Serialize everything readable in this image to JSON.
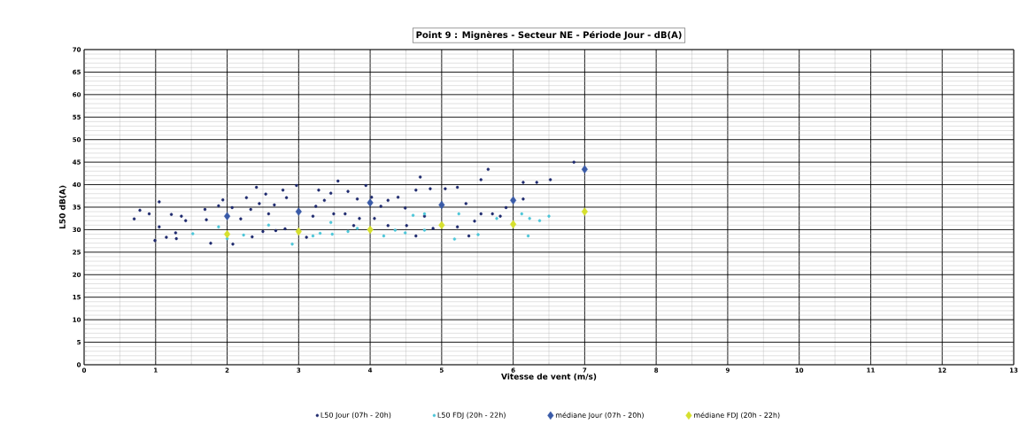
{
  "chart_data": {
    "type": "scatter",
    "title": "Point 9  : Mignères - Secteur NE - Période Jour - dB(A)",
    "xlabel": "Vitesse de vent (m/s)",
    "ylabel": "L50 dB(A)",
    "xlim": [
      0,
      13
    ],
    "ylim": [
      0,
      70
    ],
    "xticks": [
      0,
      1,
      2,
      3,
      4,
      5,
      6,
      7,
      8,
      9,
      10,
      11,
      12,
      13
    ],
    "yticks": [
      0,
      5,
      10,
      15,
      20,
      25,
      30,
      35,
      40,
      45,
      50,
      55,
      60,
      65,
      70
    ],
    "grid": true,
    "legend": "bottom",
    "series": [
      {
        "name": "L50 Jour (07h - 20h)",
        "color": "#1f2a6e",
        "marker": "circle",
        "x": [
          0.7,
          0.78,
          0.91,
          1.05,
          0.99,
          1.05,
          1.15,
          1.22,
          1.28,
          1.36,
          1.42,
          1.29,
          1.69,
          1.71,
          1.77,
          1.88,
          1.94,
          2.07,
          2.19,
          2.08,
          2.27,
          2.33,
          2.41,
          2.45,
          2.54,
          2.35,
          2.5,
          2.58,
          2.68,
          2.66,
          2.78,
          2.83,
          2.97,
          2.81,
          3.11,
          3.2,
          3.28,
          3.36,
          3.49,
          3.55,
          3.24,
          3.45,
          3.69,
          3.82,
          3.94,
          4.02,
          4.15,
          4.25,
          4.39,
          3.65,
          3.85,
          3.77,
          4.06,
          4.25,
          4.49,
          4.51,
          4.64,
          4.7,
          4.76,
          4.84,
          5.05,
          5.22,
          5.34,
          5.22,
          5.38,
          5.46,
          5.55,
          5.55,
          5.65,
          5.71,
          5.82,
          5.9,
          6.14,
          6.33,
          6.52,
          6.14,
          6.85,
          4.64,
          4.88
        ],
        "values": [
          32.4,
          34.3,
          33.5,
          36.2,
          27.6,
          30.6,
          28.3,
          33.4,
          29.3,
          33.0,
          32.0,
          28.0,
          34.5,
          32.2,
          27.0,
          35.3,
          36.6,
          34.9,
          32.4,
          26.8,
          37.1,
          34.5,
          39.4,
          35.8,
          37.9,
          28.4,
          29.6,
          33.5,
          29.8,
          35.5,
          38.8,
          37.1,
          39.8,
          30.2,
          28.3,
          33.0,
          38.8,
          36.5,
          33.5,
          40.8,
          35.2,
          38.1,
          38.5,
          36.8,
          39.8,
          37.2,
          35.2,
          36.5,
          37.2,
          33.5,
          32.5,
          30.9,
          32.5,
          30.9,
          34.8,
          30.9,
          38.8,
          41.7,
          33.0,
          39.1,
          39.1,
          39.4,
          35.8,
          30.6,
          28.6,
          31.9,
          33.5,
          41.1,
          43.4,
          33.5,
          33.0,
          34.9,
          40.5,
          40.5,
          41.1,
          36.8,
          45.0,
          28.6,
          30.3
        ]
      },
      {
        "name": "L50 FDJ (20h - 22h)",
        "color": "#4cc6d8",
        "marker": "circle",
        "x": [
          1.52,
          2.23,
          2.58,
          2.91,
          3.2,
          3.3,
          3.45,
          3.47,
          2.0,
          1.88,
          3.69,
          3.82,
          4.19,
          4.35,
          4.6,
          4.76,
          4.76,
          5.18,
          5.24,
          5.51,
          6.12,
          6.23,
          6.21,
          6.37,
          6.5,
          5.77,
          4.49
        ],
        "values": [
          29.1,
          28.8,
          31.0,
          26.8,
          28.6,
          29.2,
          31.6,
          29.0,
          28.0,
          30.6,
          29.6,
          30.3,
          28.6,
          29.9,
          33.2,
          33.5,
          29.9,
          27.9,
          33.5,
          28.9,
          33.5,
          32.5,
          28.6,
          32.0,
          33.0,
          32.5,
          29.3
        ]
      },
      {
        "name": "médiane Jour (07h - 20h)",
        "color": "#3a5ba8",
        "marker": "diamond",
        "x": [
          2,
          3,
          4,
          5,
          6,
          7
        ],
        "values": [
          33,
          34,
          36,
          35.5,
          36.5,
          43.4
        ]
      },
      {
        "name": "médiane FDJ (20h - 22h)",
        "color": "#d6e02e",
        "marker": "diamond",
        "x": [
          2,
          3,
          4,
          5,
          6,
          7
        ],
        "values": [
          29,
          29.6,
          30,
          31,
          31.2,
          34
        ]
      }
    ]
  }
}
